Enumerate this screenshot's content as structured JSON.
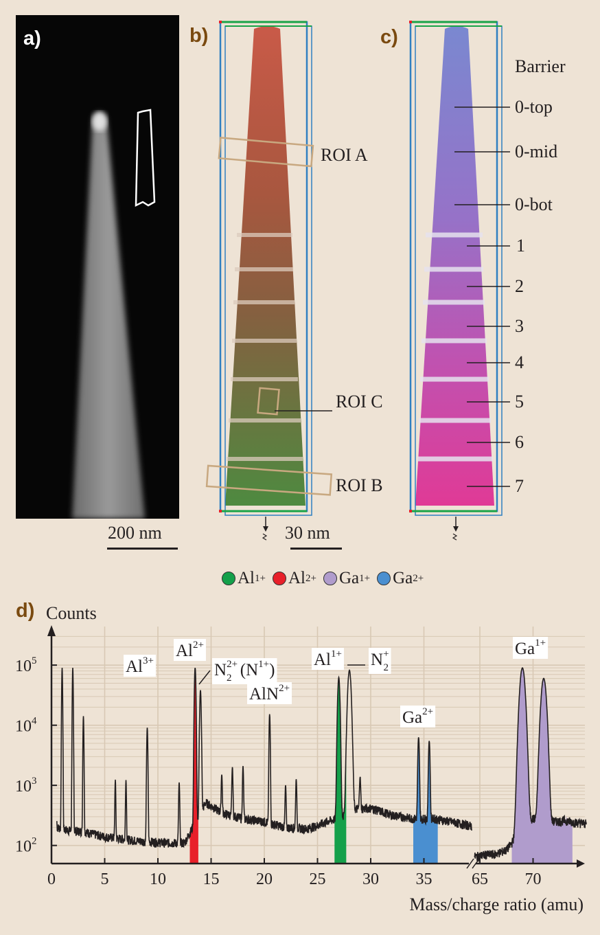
{
  "panels": {
    "a": {
      "letter": "a)",
      "scale": "200 nm"
    },
    "b": {
      "letter": "b)",
      "scale": "30 nm",
      "roi_labels": [
        "ROI A",
        "ROI C",
        "ROI B"
      ]
    },
    "c": {
      "letter": "c)",
      "barrier_header": "Barrier",
      "barrier_labels": [
        "0-top",
        "0-mid",
        "0-bot",
        "1",
        "2",
        "3",
        "4",
        "5",
        "6",
        "7"
      ]
    },
    "d": {
      "letter": "d)"
    }
  },
  "ion_legend": [
    {
      "base": "Al",
      "sup": "1+",
      "color": "#14a04a"
    },
    {
      "base": "Al",
      "sup": "2+",
      "color": "#e8202a"
    },
    {
      "base": "Ga",
      "sup": "1+",
      "color": "#b09ccc"
    },
    {
      "base": "Ga",
      "sup": "2+",
      "color": "#4a8fd0"
    }
  ],
  "chart_data": {
    "type": "line",
    "ylabel": "Counts",
    "xlabel": "Mass/charge ratio (amu)",
    "yscale": "log",
    "ylim": [
      50,
      300000
    ],
    "y_ticks": [
      {
        "value": 100,
        "base": "10",
        "exp": "2"
      },
      {
        "value": 1000,
        "base": "10",
        "exp": "3"
      },
      {
        "value": 10000,
        "base": "10",
        "exp": "4"
      },
      {
        "value": 100000,
        "base": "10",
        "exp": "5"
      }
    ],
    "x_ticks": [
      "0",
      "5",
      "10",
      "15",
      "20",
      "25",
      "30",
      "35",
      "65",
      "70"
    ],
    "x_segments": [
      {
        "range": [
          0,
          39.5
        ]
      },
      {
        "range": [
          64.5,
          75
        ]
      }
    ],
    "baseline": [
      [
        0.5,
        200
      ],
      [
        1.5,
        180
      ],
      [
        3,
        170
      ],
      [
        5,
        140
      ],
      [
        8,
        120
      ],
      [
        9.5,
        115
      ],
      [
        11,
        110
      ],
      [
        12.5,
        110
      ],
      [
        14.5,
        520
      ],
      [
        16,
        350
      ],
      [
        18,
        280
      ],
      [
        20,
        250
      ],
      [
        22,
        200
      ],
      [
        24,
        190
      ],
      [
        25,
        215
      ],
      [
        26,
        255
      ],
      [
        27,
        280
      ],
      [
        28.5,
        400
      ],
      [
        30,
        420
      ],
      [
        32,
        320
      ],
      [
        34,
        280
      ],
      [
        36,
        280
      ],
      [
        38,
        240
      ],
      [
        39.5,
        210
      ],
      [
        64.5,
        65
      ],
      [
        65.5,
        70
      ],
      [
        66.5,
        72
      ],
      [
        67.5,
        84
      ],
      [
        68,
        110
      ],
      [
        69,
        230
      ],
      [
        70,
        280
      ],
      [
        71,
        240
      ],
      [
        72,
        250
      ],
      [
        73,
        260
      ],
      [
        74,
        240
      ],
      [
        75,
        230
      ]
    ],
    "peaks": [
      {
        "m": 0.4,
        "c": 3000,
        "w": 0.05
      },
      {
        "m": 1.0,
        "c": 90000,
        "w": 0.05
      },
      {
        "m": 2.0,
        "c": 90000,
        "w": 0.05
      },
      {
        "m": 3.0,
        "c": 14000,
        "w": 0.05
      },
      {
        "m": 6.0,
        "c": 1100,
        "w": 0.05
      },
      {
        "m": 7.0,
        "c": 1100,
        "w": 0.05
      },
      {
        "m": 9.0,
        "c": 9000,
        "w": 0.06
      },
      {
        "m": 12.0,
        "c": 1000,
        "w": 0.06
      },
      {
        "m": 13.5,
        "c": 90000,
        "w": 0.08
      },
      {
        "m": 14.0,
        "c": 38000,
        "w": 0.08
      },
      {
        "m": 16.0,
        "c": 1200,
        "w": 0.06
      },
      {
        "m": 17.0,
        "c": 1700,
        "w": 0.06
      },
      {
        "m": 18.0,
        "c": 1800,
        "w": 0.06
      },
      {
        "m": 20.5,
        "c": 15000,
        "w": 0.06
      },
      {
        "m": 22.0,
        "c": 800,
        "w": 0.06
      },
      {
        "m": 23.0,
        "c": 1100,
        "w": 0.06
      },
      {
        "m": 27.0,
        "c": 62000,
        "w": 0.12
      },
      {
        "m": 28.0,
        "c": 82000,
        "w": 0.18
      },
      {
        "m": 29.0,
        "c": 1000,
        "w": 0.07
      },
      {
        "m": 34.5,
        "c": 6000,
        "w": 0.08
      },
      {
        "m": 35.5,
        "c": 5200,
        "w": 0.08
      },
      {
        "m": 69.0,
        "c": 90000,
        "w": 0.28
      },
      {
        "m": 71.0,
        "c": 60000,
        "w": 0.28
      }
    ],
    "filled_ranges": [
      {
        "ion": "Al2+",
        "range": [
          13.0,
          13.8
        ],
        "color": "#e8202a"
      },
      {
        "ion": "Al1+",
        "range": [
          26.6,
          27.7
        ],
        "color": "#14a04a"
      },
      {
        "ion": "Ga2+",
        "range": [
          34.0,
          36.3
        ],
        "color": "#4a8fd0"
      },
      {
        "ion": "Ga1+",
        "range": [
          68.0,
          73.7
        ],
        "color": "#b09ccc"
      }
    ],
    "annotations": [
      {
        "id": "al3",
        "base": "Al",
        "sup": "3+"
      },
      {
        "id": "al2",
        "base": "Al",
        "sup": "2+"
      },
      {
        "id": "n2_2",
        "base": "N",
        "sub": "2",
        "sup": "2+",
        "suffix": " (N",
        "suffix_sup": "1+",
        "suffix_end": ")"
      },
      {
        "id": "aln",
        "base": "AlN",
        "sup": "2+"
      },
      {
        "id": "al1",
        "base": "Al",
        "sup": "1+"
      },
      {
        "id": "n2_1",
        "base": "N",
        "sub": "2",
        "sup": "+"
      },
      {
        "id": "ga2",
        "base": "Ga",
        "sup": "2+"
      },
      {
        "id": "ga1",
        "base": "Ga",
        "sup": "1+"
      }
    ]
  }
}
